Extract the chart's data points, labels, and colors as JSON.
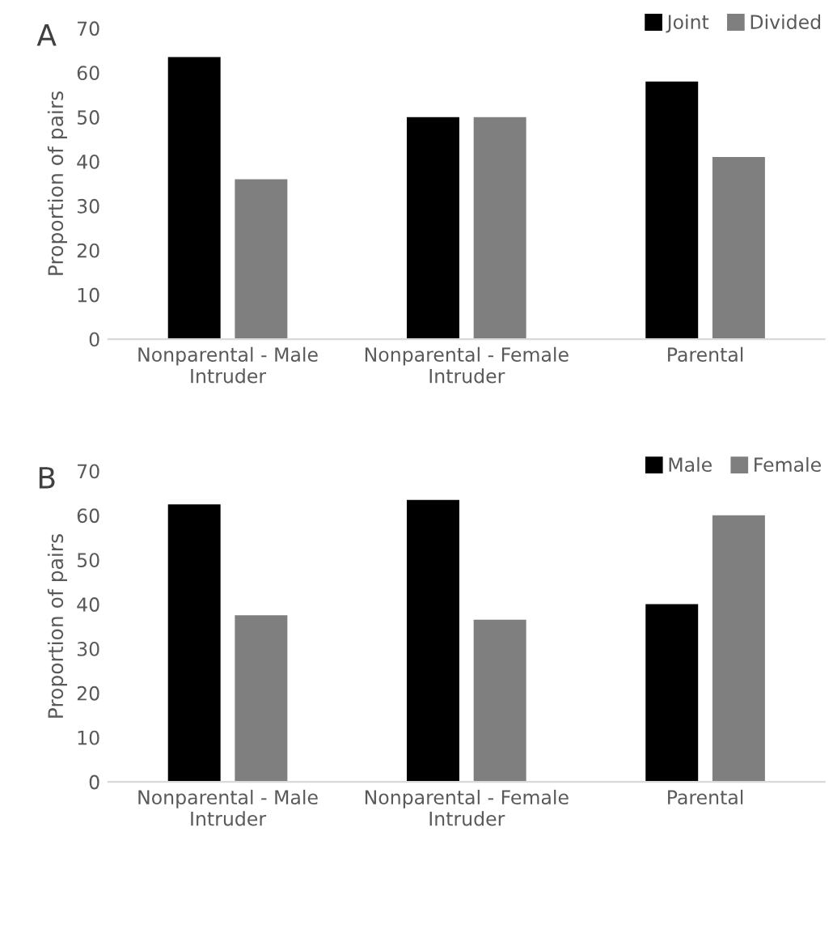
{
  "chart_data": [
    {
      "type": "bar",
      "title": "A",
      "ylabel": "Proportion of pairs",
      "categories": [
        "Nonparental - Male\nIntruder",
        "Nonparental - Female\nIntruder",
        "Parental"
      ],
      "series": [
        {
          "name": "Joint",
          "color": "#000000",
          "values": [
            63.5,
            50,
            58
          ]
        },
        {
          "name": "Divided",
          "color": "#7f7f7f",
          "values": [
            36,
            50,
            41
          ]
        }
      ],
      "ylim": [
        0,
        70
      ],
      "yticks": [
        0,
        10,
        20,
        30,
        40,
        50,
        60,
        70
      ],
      "grid": false,
      "legend": "top right"
    },
    {
      "type": "bar",
      "title": "B",
      "ylabel": "Proportion of pairs",
      "categories": [
        "Nonparental - Male\nIntruder",
        "Nonparental - Female\nIntruder",
        "Parental"
      ],
      "series": [
        {
          "name": "Male",
          "color": "#000000",
          "values": [
            62.5,
            63.5,
            40
          ]
        },
        {
          "name": "Female",
          "color": "#7f7f7f",
          "values": [
            37.5,
            36.5,
            60
          ]
        }
      ],
      "ylim": [
        0,
        70
      ],
      "yticks": [
        0,
        10,
        20,
        30,
        40,
        50,
        60,
        70
      ],
      "grid": false,
      "legend": "top right"
    }
  ]
}
